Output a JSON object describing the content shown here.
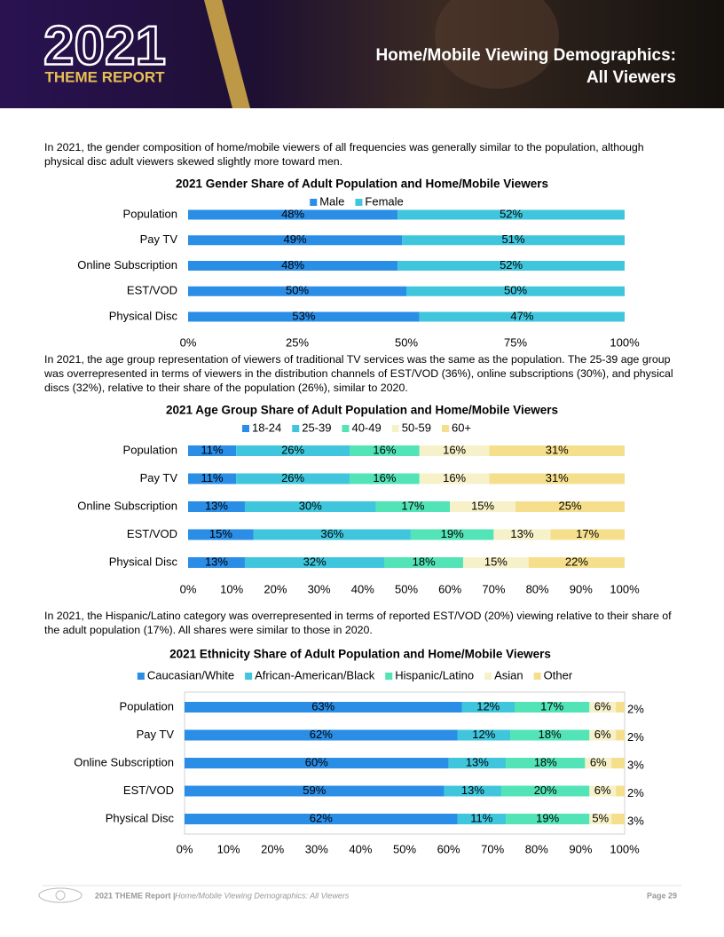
{
  "header": {
    "logo_year": "2021",
    "logo_text": "THEME REPORT",
    "title_lines": [
      "Home/Mobile Viewing Demographics:",
      "All Viewers"
    ]
  },
  "paragraphs": [
    "In 2021, the gender composition of home/mobile viewers of all frequencies was generally similar to the population, although physical disc adult viewers skewed slightly more toward men.",
    "In 2021, the age group representation of viewers of traditional TV services was the same as the population. The 25-39 age group was overrepresented in terms of viewers in the distribution channels of EST/VOD (36%), online subscriptions (30%), and physical discs (32%), relative to their share of the population (26%), similar to 2020.",
    "In 2021, the Hispanic/Latino category was overrepresented in terms of reported EST/VOD (20%) viewing relative to their share of the adult population (17%). All shares were similar to those in 2020."
  ],
  "chart_data": [
    {
      "type": "stacked_bar_horizontal",
      "title": "2021 Gender Share of Adult Population and Home/Mobile Viewers",
      "categories": [
        "Population",
        "Pay TV",
        "Online Subscription",
        "EST/VOD",
        "Physical Disc"
      ],
      "series": [
        {
          "name": "Male",
          "color": "#2a8de6",
          "values": [
            48,
            49,
            48,
            50,
            53
          ],
          "value_labels": [
            "48%",
            "49%",
            "48%",
            "50%",
            "53%"
          ]
        },
        {
          "name": "Female",
          "color": "#3fc6dc",
          "values": [
            52,
            51,
            52,
            50,
            47
          ],
          "value_labels": [
            "52%",
            "51%",
            "52%",
            "50%",
            "47%"
          ]
        }
      ],
      "xlim": [
        0,
        100
      ],
      "xticks": [
        {
          "value": 0,
          "label": "0%"
        },
        {
          "value": 25,
          "label": "25%"
        },
        {
          "value": 50,
          "label": "50%"
        },
        {
          "value": 75,
          "label": "75%"
        },
        {
          "value": 100,
          "label": "100%"
        }
      ]
    },
    {
      "type": "stacked_bar_horizontal",
      "title": "2021 Age Group Share of Adult Population and Home/Mobile Viewers",
      "categories": [
        "Population",
        "Pay TV",
        "Online Subscription",
        "EST/VOD",
        "Physical Disc"
      ],
      "series": [
        {
          "name": "18-24",
          "color": "#2a8de6",
          "values": [
            11,
            11,
            13,
            15,
            13
          ],
          "value_labels": [
            "11%",
            "11%",
            "13%",
            "15%",
            "13%"
          ]
        },
        {
          "name": "25-39",
          "color": "#3fc6dc",
          "values": [
            26,
            26,
            30,
            36,
            32
          ],
          "value_labels": [
            "26%",
            "26%",
            "30%",
            "36%",
            "32%"
          ]
        },
        {
          "name": "40-49",
          "color": "#52e3b6",
          "values": [
            16,
            16,
            17,
            19,
            18
          ],
          "value_labels": [
            "16%",
            "16%",
            "17%",
            "19%",
            "18%"
          ]
        },
        {
          "name": "50-59",
          "color": "#f6f1c9",
          "values": [
            16,
            16,
            15,
            13,
            15
          ],
          "value_labels": [
            "16%",
            "16%",
            "15%",
            "13%",
            "15%"
          ]
        },
        {
          "name": "60+",
          "color": "#f6df8c",
          "values": [
            31,
            31,
            25,
            17,
            22
          ],
          "value_labels": [
            "31%",
            "31%",
            "25%",
            "17%",
            "22%"
          ]
        }
      ],
      "xlim": [
        0,
        100
      ],
      "xticks": [
        {
          "value": 0,
          "label": "0%"
        },
        {
          "value": 10,
          "label": "10%"
        },
        {
          "value": 20,
          "label": "20%"
        },
        {
          "value": 30,
          "label": "30%"
        },
        {
          "value": 40,
          "label": "40%"
        },
        {
          "value": 50,
          "label": "50%"
        },
        {
          "value": 60,
          "label": "60%"
        },
        {
          "value": 70,
          "label": "70%"
        },
        {
          "value": 80,
          "label": "80%"
        },
        {
          "value": 90,
          "label": "90%"
        },
        {
          "value": 100,
          "label": "100%"
        }
      ]
    },
    {
      "type": "stacked_bar_horizontal",
      "title": "2021 Ethnicity Share of Adult Population and Home/Mobile Viewers",
      "categories": [
        "Population",
        "Pay TV",
        "Online Subscription",
        "EST/VOD",
        "Physical Disc"
      ],
      "series": [
        {
          "name": "Caucasian/White",
          "color": "#2a8de6",
          "values": [
            63,
            62,
            60,
            59,
            62
          ],
          "value_labels": [
            "63%",
            "62%",
            "60%",
            "59%",
            "62%"
          ]
        },
        {
          "name": "African-American/Black",
          "color": "#3fc6dc",
          "values": [
            12,
            12,
            13,
            13,
            11
          ],
          "value_labels": [
            "12%",
            "12%",
            "13%",
            "13%",
            "11%"
          ]
        },
        {
          "name": "Hispanic/Latino",
          "color": "#52e3b6",
          "values": [
            17,
            18,
            18,
            20,
            19
          ],
          "value_labels": [
            "17%",
            "18%",
            "18%",
            "20%",
            "19%"
          ]
        },
        {
          "name": "Asian",
          "color": "#f6f1c9",
          "values": [
            6,
            6,
            6,
            6,
            5
          ],
          "value_labels": [
            "6%",
            "6%",
            "6%",
            "6%",
            "5%"
          ]
        },
        {
          "name": "Other",
          "color": "#f6df8c",
          "values": [
            2,
            2,
            3,
            2,
            3
          ],
          "value_labels": [
            "2%",
            "2%",
            "3%",
            "2%",
            "3%"
          ]
        }
      ],
      "xlim": [
        0,
        100
      ],
      "xticks": [
        {
          "value": 0,
          "label": "0%"
        },
        {
          "value": 10,
          "label": "10%"
        },
        {
          "value": 20,
          "label": "20%"
        },
        {
          "value": 30,
          "label": "30%"
        },
        {
          "value": 40,
          "label": "40%"
        },
        {
          "value": 50,
          "label": "50%"
        },
        {
          "value": 60,
          "label": "60%"
        },
        {
          "value": 70,
          "label": "70%"
        },
        {
          "value": 80,
          "label": "80%"
        },
        {
          "value": 90,
          "label": "90%"
        },
        {
          "value": 100,
          "label": "100%"
        }
      ]
    }
  ],
  "footer": {
    "report": "2021 THEME Report |",
    "section": "Home/Mobile Viewing Demographics: All Viewers",
    "page": "Page 29"
  }
}
